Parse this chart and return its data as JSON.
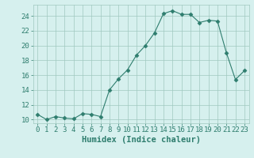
{
  "x": [
    0,
    1,
    2,
    3,
    4,
    5,
    6,
    7,
    8,
    9,
    10,
    11,
    12,
    13,
    14,
    15,
    16,
    17,
    18,
    19,
    20,
    21,
    22,
    23
  ],
  "y": [
    10.7,
    10.0,
    10.4,
    10.2,
    10.1,
    10.8,
    10.7,
    10.4,
    14.0,
    15.5,
    16.7,
    18.7,
    20.0,
    21.7,
    24.3,
    24.7,
    24.2,
    24.2,
    23.1,
    23.4,
    23.3,
    19.0,
    15.4,
    16.6
  ],
  "line_color": "#2e7d6e",
  "marker": "D",
  "marker_size": 2.5,
  "bg_color": "#d6f0ee",
  "grid_color": "#a0c8c0",
  "xlabel": "Humidex (Indice chaleur)",
  "xlabel_fontsize": 7.5,
  "tick_fontsize": 6.5,
  "xlim": [
    -0.5,
    23.5
  ],
  "ylim": [
    9.5,
    25.5
  ],
  "yticks": [
    10,
    12,
    14,
    16,
    18,
    20,
    22,
    24
  ],
  "xticks": [
    0,
    1,
    2,
    3,
    4,
    5,
    6,
    7,
    8,
    9,
    10,
    11,
    12,
    13,
    14,
    15,
    16,
    17,
    18,
    19,
    20,
    21,
    22,
    23
  ]
}
